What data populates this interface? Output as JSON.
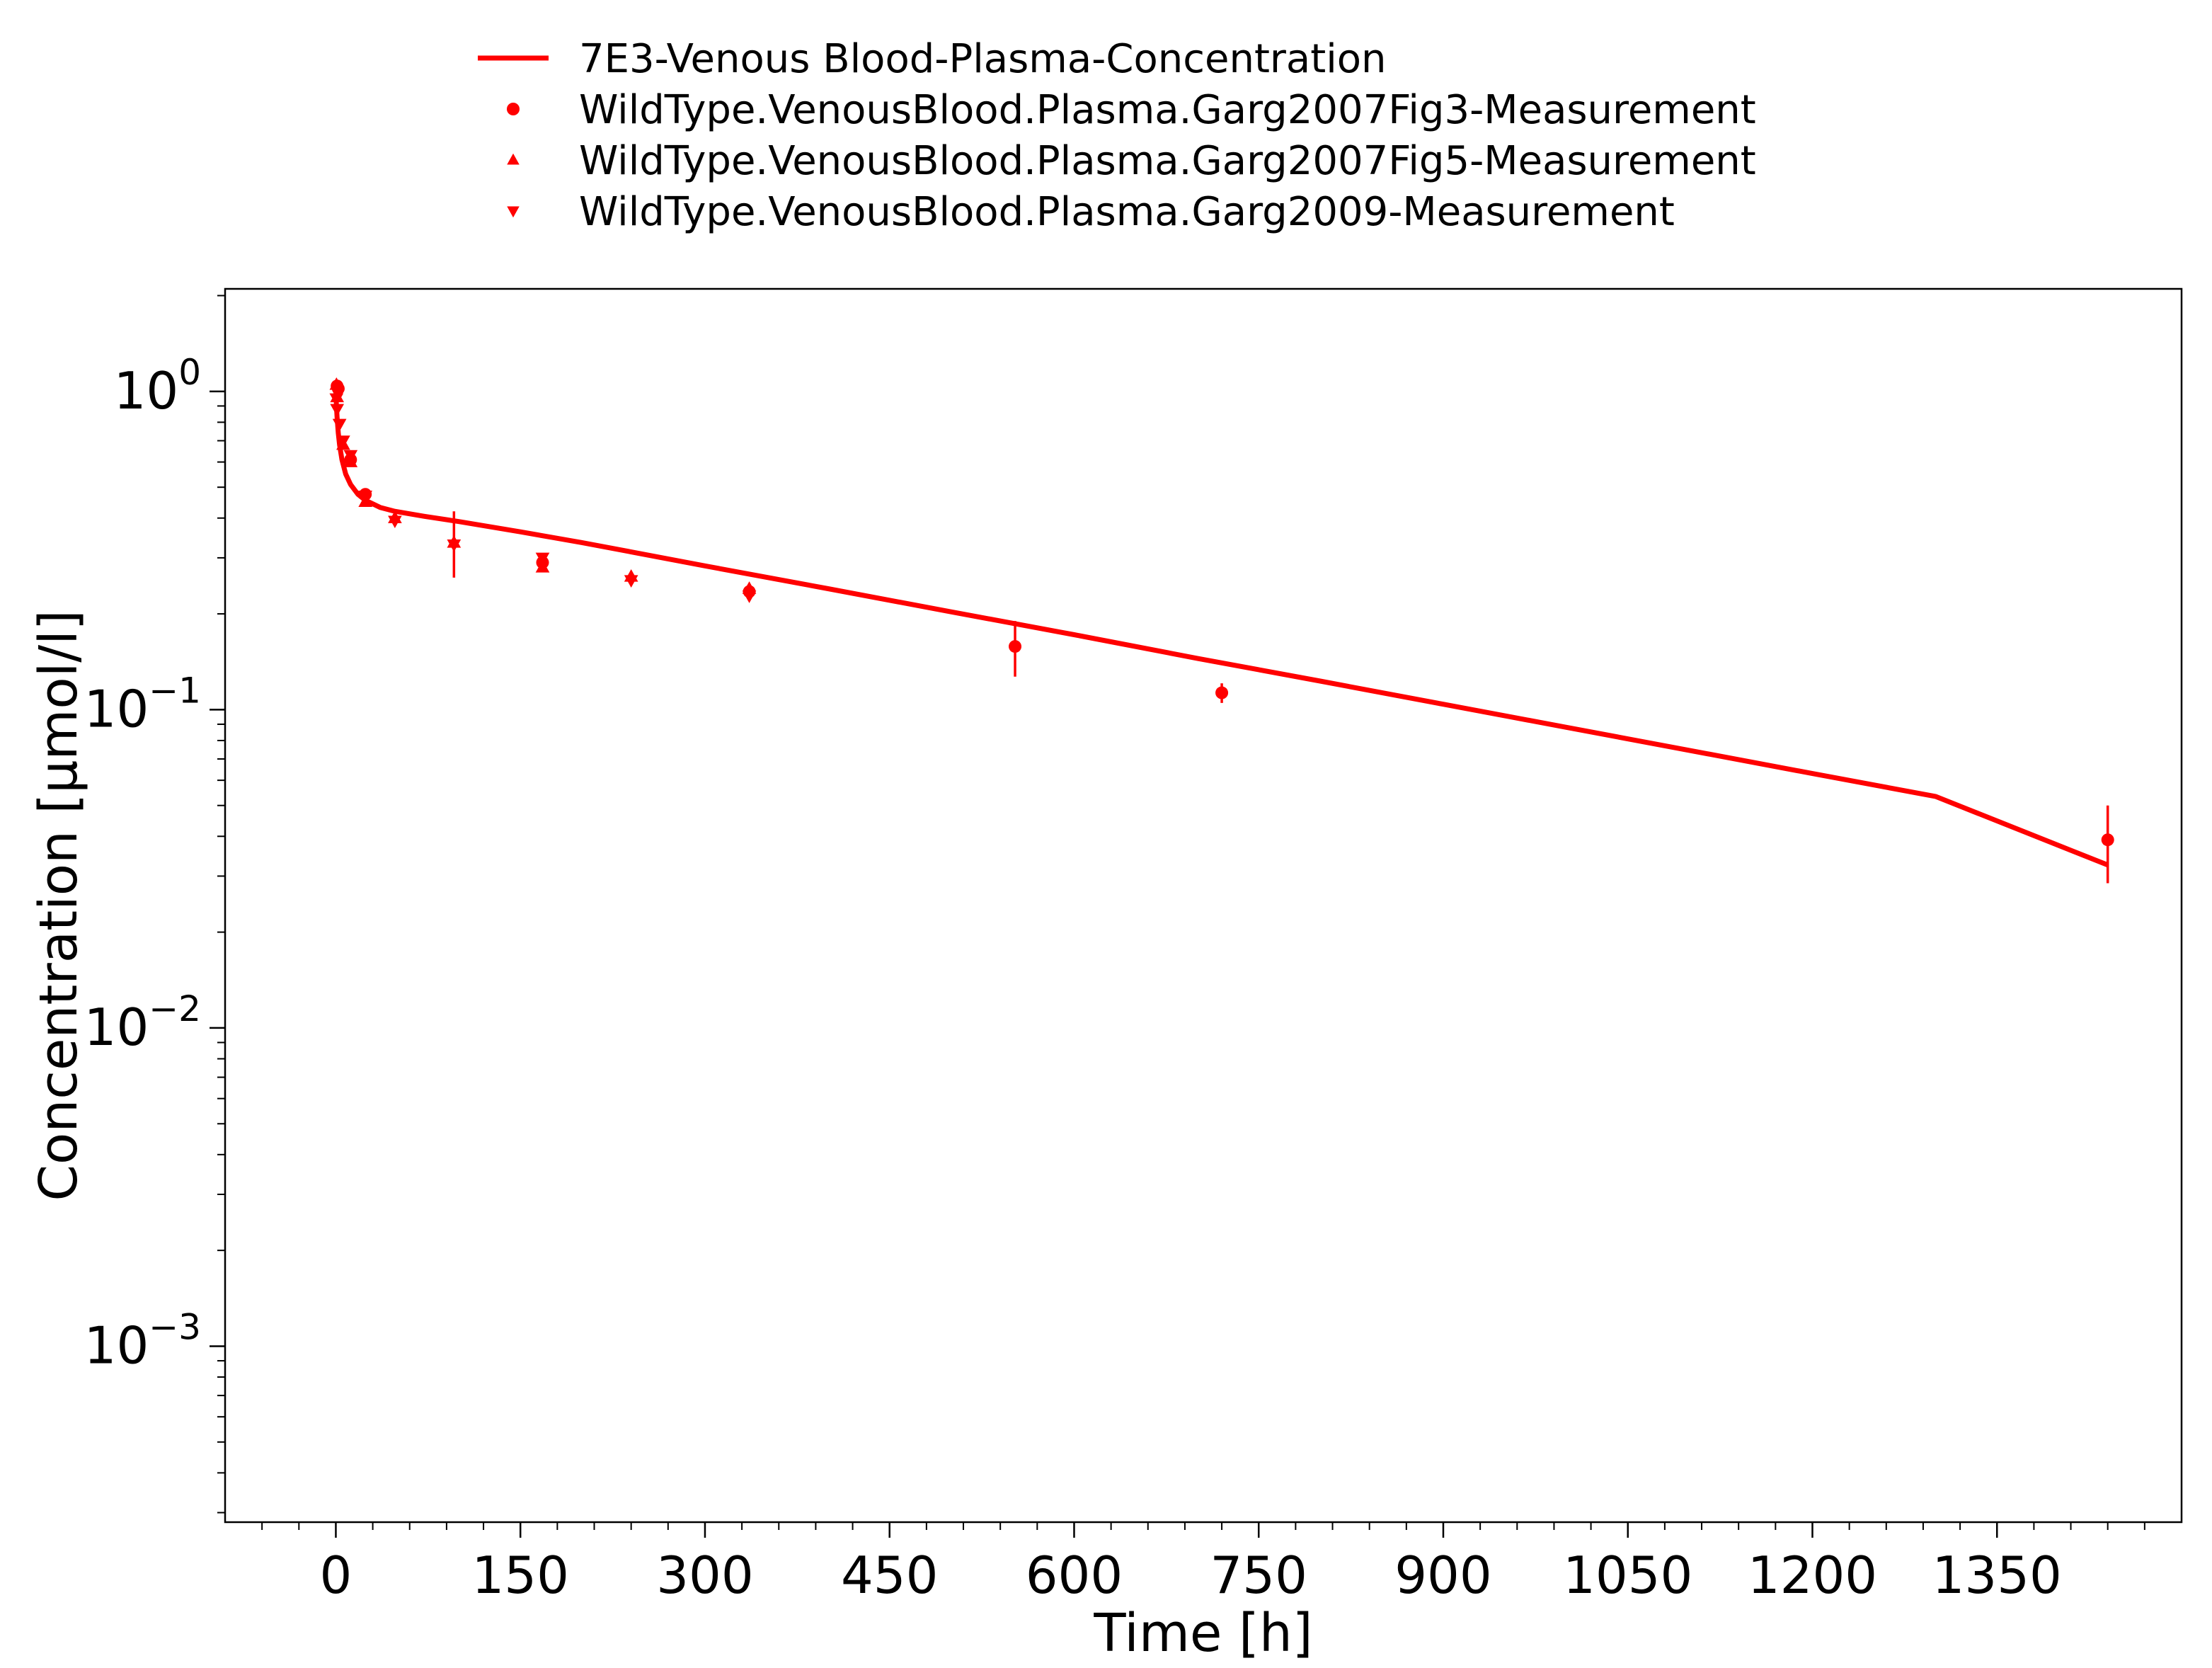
{
  "chart_data": {
    "type": "line",
    "xlabel": "Time [h]",
    "ylabel": "Concentration [µmol/l]",
    "xlim": [
      -90,
      1500
    ],
    "ylim": [
      0.00028,
      2.1
    ],
    "yscale": "log",
    "x_ticks": [
      0,
      150,
      300,
      450,
      600,
      750,
      900,
      1050,
      1200,
      1350
    ],
    "x_tick_labels": [
      "0",
      "150",
      "300",
      "450",
      "600",
      "750",
      "900",
      "1050",
      "1200",
      "1350"
    ],
    "y_ticks": [
      {
        "value": 1,
        "base": "10",
        "exp": "0"
      },
      {
        "value": 0.1,
        "base": "10",
        "exp": "−1"
      },
      {
        "value": 0.01,
        "base": "10",
        "exp": "−2"
      },
      {
        "value": 0.001,
        "base": "10",
        "exp": "−3"
      }
    ],
    "grid": false,
    "legend_position": "top-center",
    "color": "#ff0000",
    "series": [
      {
        "name": "7E3-Venous Blood-Plasma-Concentration",
        "kind": "line",
        "x": [
          0,
          0.5,
          1,
          2,
          3,
          5,
          8,
          12,
          18,
          24,
          36,
          48,
          72,
          100,
          150,
          200,
          300,
          400,
          500,
          600,
          700,
          800,
          900,
          1000,
          1100,
          1200,
          1300,
          1440
        ],
        "y": [
          1.0,
          0.9,
          0.83,
          0.74,
          0.68,
          0.61,
          0.55,
          0.51,
          0.475,
          0.455,
          0.432,
          0.42,
          0.405,
          0.39,
          0.362,
          0.335,
          0.283,
          0.24,
          0.203,
          0.172,
          0.145,
          0.123,
          0.104,
          0.088,
          0.0745,
          0.063,
          0.0534,
          0.0325
        ]
      },
      {
        "name": "WildType.VenousBlood.Plasma.Garg2007Fig3-Measurement",
        "kind": "circle",
        "points": [
          {
            "x": 1,
            "y": 1.04
          },
          {
            "x": 2,
            "y": 1.02
          },
          {
            "x": 12,
            "y": 0.61
          },
          {
            "x": 24,
            "y": 0.475
          },
          {
            "x": 168,
            "y": 0.29
          },
          {
            "x": 336,
            "y": 0.235,
            "err": [
              0.225,
              0.247
            ]
          },
          {
            "x": 552,
            "y": 0.158,
            "err": [
              0.127,
              0.19
            ]
          },
          {
            "x": 720,
            "y": 0.113,
            "err": [
              0.105,
              0.121
            ]
          },
          {
            "x": 1440,
            "y": 0.039,
            "err": [
              0.0285,
              0.05
            ]
          }
        ]
      },
      {
        "name": "WildType.VenousBlood.Plasma.Garg2007Fig5-Measurement",
        "kind": "triangle-up",
        "points": [
          {
            "x": 0.5,
            "y": 1.05
          },
          {
            "x": 1,
            "y": 0.96
          },
          {
            "x": 6,
            "y": 0.68
          },
          {
            "x": 12,
            "y": 0.6
          },
          {
            "x": 24,
            "y": 0.45
          },
          {
            "x": 48,
            "y": 0.4
          },
          {
            "x": 96,
            "y": 0.335,
            "err": [
              0.26,
              0.42
            ]
          },
          {
            "x": 168,
            "y": 0.28
          },
          {
            "x": 240,
            "y": 0.262
          },
          {
            "x": 336,
            "y": 0.24
          }
        ]
      },
      {
        "name": "WildType.VenousBlood.Plasma.Garg2009-Measurement",
        "kind": "triangle-down",
        "points": [
          {
            "x": 0.5,
            "y": 0.95
          },
          {
            "x": 1,
            "y": 0.88
          },
          {
            "x": 3,
            "y": 0.79
          },
          {
            "x": 6,
            "y": 0.7
          },
          {
            "x": 12,
            "y": 0.63
          },
          {
            "x": 24,
            "y": 0.47
          },
          {
            "x": 48,
            "y": 0.392
          },
          {
            "x": 96,
            "y": 0.33
          },
          {
            "x": 168,
            "y": 0.3
          },
          {
            "x": 240,
            "y": 0.255
          },
          {
            "x": 336,
            "y": 0.228
          }
        ]
      }
    ]
  }
}
